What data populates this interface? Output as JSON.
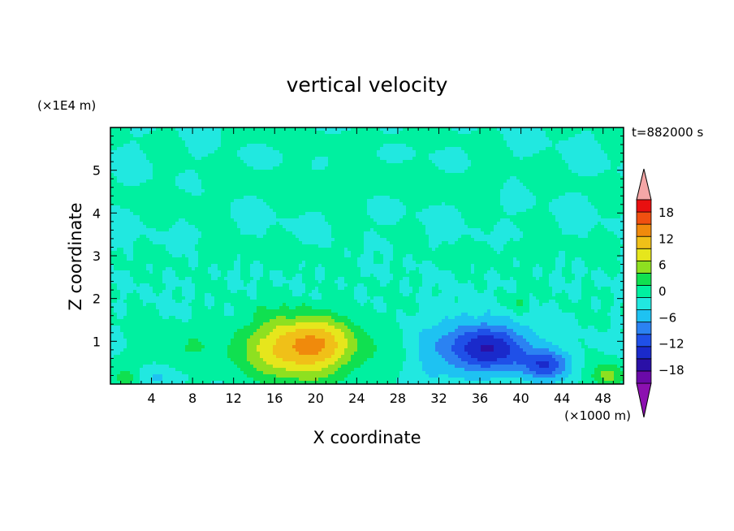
{
  "chart_data": {
    "type": "heatmap",
    "title": "vertical velocity",
    "xlabel": "X coordinate",
    "ylabel": "Z coordinate",
    "x_unit": "(×1000 m)",
    "y_unit": "(×1E4 m)",
    "time_label": "t=882000 s",
    "xlim": [
      0,
      50
    ],
    "ylim": [
      0,
      6
    ],
    "x_ticks": [
      4,
      8,
      12,
      16,
      20,
      24,
      28,
      32,
      36,
      40,
      44,
      48
    ],
    "y_ticks": [
      1,
      2,
      3,
      4,
      5
    ],
    "colorbar": {
      "levels": [
        -21,
        -18,
        -15,
        -12,
        -9,
        -6,
        -3,
        0,
        3,
        6,
        9,
        12,
        15,
        18,
        21
      ],
      "tick_labels": [
        "18",
        "12",
        "6",
        "0",
        "−6",
        "−12",
        "−18"
      ],
      "tick_values": [
        18,
        12,
        6,
        0,
        -6,
        -12,
        -18
      ],
      "colors": [
        "#6a0aa8",
        "#2a10a6",
        "#1a2acb",
        "#1f50e8",
        "#2b82f2",
        "#1ec2f2",
        "#21e8e0",
        "#00f0a0",
        "#10e050",
        "#8ee020",
        "#e6e61c",
        "#f0c018",
        "#f08a0c",
        "#f05010",
        "#e81010"
      ],
      "over_color": "#f4a6a6",
      "under_color": "#8c10b0"
    },
    "features": [
      {
        "x": 18.5,
        "z": 0.85,
        "sx": 5.5,
        "sz": 0.75,
        "amp": 15
      },
      {
        "x": 20.5,
        "z": 1.0,
        "sx": 3.0,
        "sz": 0.5,
        "amp": 2.5
      },
      {
        "x": 37.5,
        "z": 0.85,
        "sx": 3.6,
        "sz": 0.55,
        "amp": -14
      },
      {
        "x": 42.5,
        "z": 0.45,
        "sx": 2.4,
        "sz": 0.35,
        "amp": -11
      },
      {
        "x": 34.0,
        "z": 0.9,
        "sx": 2.5,
        "sz": 0.9,
        "amp": -5
      },
      {
        "x": 31.0,
        "z": 0.6,
        "sx": 2.0,
        "sz": 0.8,
        "amp": -3
      },
      {
        "x": 4.5,
        "z": 0.15,
        "sx": 2.5,
        "sz": 0.2,
        "amp": -3.5
      },
      {
        "x": 1.5,
        "z": 0.15,
        "sx": 1.2,
        "sz": 0.2,
        "amp": 5
      },
      {
        "x": 48.5,
        "z": 0.2,
        "sx": 1.6,
        "sz": 0.3,
        "amp": 7
      },
      {
        "x": 39.5,
        "z": 1.9,
        "sx": 1.3,
        "sz": 0.25,
        "amp": 3
      },
      {
        "x": 7.0,
        "z": 0.8,
        "sx": 3.0,
        "sz": 0.5,
        "amp": 2.5
      },
      {
        "x": 25.0,
        "z": 4.7,
        "sx": 14.0,
        "sz": 0.35,
        "amp": 1.5
      },
      {
        "x": 15.0,
        "z": 3.0,
        "sx": 9.0,
        "sz": 0.3,
        "amp": 1.3
      },
      {
        "x": 40.0,
        "z": 3.0,
        "sx": 7.0,
        "sz": 0.3,
        "amp": 1.3
      },
      {
        "x": 22.0,
        "z": 5.7,
        "sx": 9.0,
        "sz": 0.2,
        "amp": 1.2
      },
      {
        "x": 5.0,
        "z": 4.3,
        "sx": 4.0,
        "sz": 0.25,
        "amp": 1.3
      }
    ]
  }
}
